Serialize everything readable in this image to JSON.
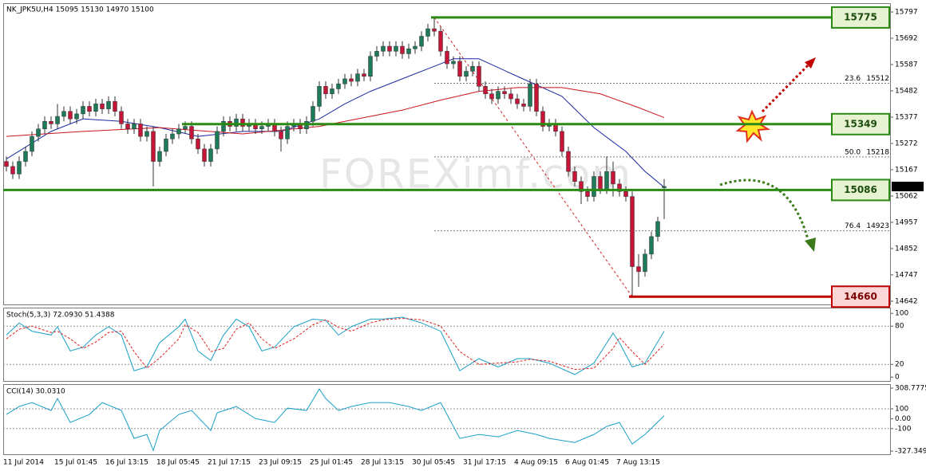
{
  "chart_data": {
    "type": "candlestick",
    "title": "NK_JPK5U,H4  15095 15130 14970 15100",
    "watermark": "FOREXimf.com",
    "categories": [
      "11 Jul 2014",
      null,
      null,
      null,
      null,
      null,
      null,
      null,
      "15 Jul 01:45",
      null,
      null,
      null,
      null,
      null,
      null,
      null,
      "16 Jul 13:15",
      null,
      null,
      null,
      null,
      null,
      null,
      null,
      "18 Jul 05:45",
      null,
      null,
      null,
      null,
      null,
      null,
      null,
      "21 Jul 17:15",
      null,
      null,
      null,
      null,
      null,
      null,
      null,
      "23 Jul 09:15",
      null,
      null,
      null,
      null,
      null,
      null,
      null,
      "25 Jul 01:45",
      null,
      null,
      null,
      null,
      null,
      null,
      null,
      "28 Jul 13:15",
      null,
      null,
      null,
      null,
      null,
      null,
      null,
      "30 Jul 05:45",
      null,
      null,
      null,
      null,
      null,
      null,
      null,
      "31 Jul 17:15",
      null,
      null,
      null,
      null,
      null,
      null,
      null,
      "4 Aug 09:15",
      null,
      null,
      null,
      null,
      null,
      null,
      null,
      "6 Aug 01:45",
      null,
      null,
      null,
      null,
      null,
      null,
      null,
      "7 Aug 13:15",
      null,
      null,
      null,
      null,
      null,
      null,
      null
    ],
    "candles": [
      [
        15200,
        15220,
        15160,
        15180
      ],
      [
        15180,
        15200,
        15130,
        15150
      ],
      [
        15150,
        15220,
        15130,
        15200
      ],
      [
        15200,
        15260,
        15180,
        15240
      ],
      [
        15240,
        15320,
        15220,
        15300
      ],
      [
        15300,
        15350,
        15280,
        15330
      ],
      [
        15330,
        15380,
        15310,
        15360
      ],
      [
        15360,
        15380,
        15330,
        15350
      ],
      [
        15350,
        15430,
        15330,
        15380
      ],
      [
        15380,
        15420,
        15360,
        15400
      ],
      [
        15400,
        15420,
        15350,
        15370
      ],
      [
        15370,
        15410,
        15350,
        15390
      ],
      [
        15390,
        15440,
        15370,
        15420
      ],
      [
        15420,
        15440,
        15380,
        15400
      ],
      [
        15400,
        15450,
        15380,
        15430
      ],
      [
        15430,
        15450,
        15390,
        15410
      ],
      [
        15410,
        15460,
        15390,
        15440
      ],
      [
        15440,
        15460,
        15380,
        15400
      ],
      [
        15400,
        15420,
        15330,
        15350
      ],
      [
        15350,
        15370,
        15310,
        15330
      ],
      [
        15330,
        15370,
        15310,
        15350
      ],
      [
        15350,
        15370,
        15280,
        15300
      ],
      [
        15300,
        15340,
        15280,
        15320
      ],
      [
        15320,
        15340,
        15100,
        15200
      ],
      [
        15200,
        15260,
        15180,
        15240
      ],
      [
        15240,
        15310,
        15220,
        15290
      ],
      [
        15290,
        15330,
        15270,
        15310
      ],
      [
        15310,
        15350,
        15290,
        15330
      ],
      [
        15330,
        15360,
        15310,
        15340
      ],
      [
        15340,
        15360,
        15270,
        15290
      ],
      [
        15290,
        15310,
        15230,
        15250
      ],
      [
        15250,
        15270,
        15180,
        15200
      ],
      [
        15200,
        15270,
        15180,
        15250
      ],
      [
        15250,
        15340,
        15230,
        15320
      ],
      [
        15320,
        15380,
        15300,
        15360
      ],
      [
        15360,
        15380,
        15320,
        15340
      ],
      [
        15340,
        15390,
        15320,
        15370
      ],
      [
        15370,
        15390,
        15320,
        15340
      ],
      [
        15340,
        15370,
        15320,
        15350
      ],
      [
        15350,
        15370,
        15310,
        15330
      ],
      [
        15330,
        15360,
        15310,
        15340
      ],
      [
        15340,
        15370,
        15320,
        15350
      ],
      [
        15350,
        15370,
        15300,
        15320
      ],
      [
        15320,
        15340,
        15240,
        15290
      ],
      [
        15290,
        15360,
        15270,
        15340
      ],
      [
        15340,
        15370,
        15320,
        15350
      ],
      [
        15350,
        15370,
        15310,
        15330
      ],
      [
        15330,
        15380,
        15310,
        15360
      ],
      [
        15360,
        15440,
        15340,
        15420
      ],
      [
        15420,
        15520,
        15400,
        15500
      ],
      [
        15500,
        15520,
        15450,
        15470
      ],
      [
        15470,
        15510,
        15450,
        15490
      ],
      [
        15490,
        15530,
        15470,
        15510
      ],
      [
        15510,
        15550,
        15490,
        15530
      ],
      [
        15530,
        15550,
        15500,
        15520
      ],
      [
        15520,
        15570,
        15500,
        15550
      ],
      [
        15550,
        15570,
        15520,
        15540
      ],
      [
        15540,
        15640,
        15520,
        15620
      ],
      [
        15620,
        15660,
        15600,
        15640
      ],
      [
        15640,
        15680,
        15620,
        15660
      ],
      [
        15660,
        15680,
        15620,
        15640
      ],
      [
        15640,
        15680,
        15620,
        15660
      ],
      [
        15660,
        15680,
        15610,
        15630
      ],
      [
        15630,
        15670,
        15610,
        15650
      ],
      [
        15650,
        15680,
        15630,
        15660
      ],
      [
        15660,
        15720,
        15640,
        15700
      ],
      [
        15700,
        15750,
        15680,
        15730
      ],
      [
        15730,
        15775,
        15700,
        15720
      ],
      [
        15720,
        15740,
        15620,
        15640
      ],
      [
        15640,
        15660,
        15570,
        15590
      ],
      [
        15590,
        15620,
        15570,
        15600
      ],
      [
        15600,
        15620,
        15520,
        15540
      ],
      [
        15540,
        15580,
        15520,
        15560
      ],
      [
        15560,
        15600,
        15540,
        15580
      ],
      [
        15580,
        15600,
        15480,
        15500
      ],
      [
        15500,
        15520,
        15450,
        15470
      ],
      [
        15470,
        15490,
        15430,
        15450
      ],
      [
        15450,
        15500,
        15430,
        15480
      ],
      [
        15480,
        15500,
        15450,
        15470
      ],
      [
        15470,
        15490,
        15430,
        15450
      ],
      [
        15450,
        15470,
        15410,
        15430
      ],
      [
        15430,
        15450,
        15400,
        15420
      ],
      [
        15420,
        15530,
        15400,
        15510
      ],
      [
        15510,
        15530,
        15380,
        15400
      ],
      [
        15400,
        15420,
        15320,
        15340
      ],
      [
        15340,
        15370,
        15320,
        15350
      ],
      [
        15350,
        15370,
        15300,
        15320
      ],
      [
        15320,
        15340,
        15220,
        15240
      ],
      [
        15240,
        15260,
        15140,
        15160
      ],
      [
        15160,
        15180,
        15100,
        15120
      ],
      [
        15120,
        15140,
        15030,
        15080
      ],
      [
        15080,
        15100,
        15040,
        15060
      ],
      [
        15060,
        15160,
        15040,
        15140
      ],
      [
        15140,
        15160,
        15070,
        15090
      ],
      [
        15090,
        15220,
        15070,
        15160
      ],
      [
        15160,
        15200,
        15060,
        15110
      ],
      [
        15110,
        15130,
        15060,
        15080
      ],
      [
        15080,
        15100,
        15040,
        15060
      ],
      [
        15060,
        15080,
        14660,
        14780
      ],
      [
        14780,
        14830,
        14700,
        14760
      ],
      [
        14760,
        14850,
        14740,
        14830
      ],
      [
        14830,
        14920,
        14810,
        14900
      ],
      [
        14900,
        14980,
        14880,
        14960
      ],
      [
        15095,
        15130,
        14970,
        15100
      ]
    ],
    "up_color": "#1f7a5a",
    "down_color": "#c4163a",
    "ylim": [
      14629,
      15832
    ],
    "yticks": [
      15797,
      15692,
      15587,
      15482,
      15377,
      15272,
      15167,
      15062,
      14957,
      14852,
      14747,
      14642
    ],
    "series": [
      {
        "color": "#1a2aa0",
        "x": [
          0,
          7,
          12,
          18,
          24,
          30,
          37,
          43,
          49,
          53,
          57,
          62,
          67,
          70,
          74,
          80,
          87,
          92,
          97,
          100,
          103
        ],
        "values": [
          15210,
          15320,
          15370,
          15360,
          15335,
          15300,
          15320,
          15320,
          15370,
          15430,
          15480,
          15530,
          15580,
          15610,
          15610,
          15540,
          15460,
          15335,
          15240,
          15160,
          15097
        ]
      },
      {
        "color": "#c8141e",
        "x": [
          0,
          12,
          24,
          37,
          49,
          55,
          62,
          68,
          74,
          80,
          87,
          93,
          99,
          103
        ],
        "values": [
          15300,
          15320,
          15335,
          15310,
          15340,
          15370,
          15405,
          15445,
          15480,
          15495,
          15495,
          15470,
          15415,
          15375
        ]
      }
    ],
    "levels": [
      {
        "value": 15775,
        "start": 67,
        "color": "#2a8a14"
      },
      {
        "value": 15349,
        "start": 28,
        "color": "#2a8a14"
      },
      {
        "value": 15086,
        "start": 0,
        "color": "#2a8a14"
      },
      {
        "value": 14660,
        "start": 98,
        "color": "#c00000"
      }
    ],
    "fib": [
      {
        "level": 23.6,
        "value": 15512
      },
      {
        "level": {
          "value": 50,
          "label": "50.0"
        },
        "value": 15218
      },
      {
        "level": 76.4,
        "value": 14923
      }
    ],
    "indicators": [
      {
        "type": "line",
        "title": "Stoch(5,3,3) 72.0930 51.4388",
        "ylim": [
          -6,
          109
        ],
        "yticks": [
          100,
          80,
          20,
          0
        ],
        "levels": [
          80,
          20
        ],
        "series": [
          {
            "color": "#1aa0c8",
            "x": [
              0,
              2,
              4,
              7,
              8,
              10,
              12,
              14,
              16,
              18,
              20,
              22,
              24,
              27,
              28,
              30,
              32,
              34,
              36,
              38,
              40,
              42,
              45,
              48,
              50,
              52,
              54,
              57,
              59,
              62,
              65,
              68,
              71,
              74,
              77,
              80,
              82,
              85,
              89,
              92,
              95,
              96,
              98,
              100,
              103
            ],
            "values": [
              66,
              85,
              72,
              66,
              79,
              41,
              47,
              66,
              79,
              66,
              10,
              16,
              54,
              79,
              91,
              41,
              26,
              66,
              91,
              79,
              41,
              47,
              79,
              91,
              89,
              66,
              79,
              91,
              91,
              94,
              85,
              72,
              10,
              29,
              16,
              29,
              29,
              22,
              4,
              22,
              69,
              54,
              16,
              22,
              72.093
            ]
          },
          {
            "color": "#e0201e",
            "dashed": true,
            "x": [
              0,
              2,
              4,
              7,
              8,
              10,
              12,
              14,
              16,
              18,
              20,
              22,
              24,
              27,
              28,
              30,
              32,
              34,
              36,
              38,
              40,
              42,
              45,
              48,
              50,
              52,
              54,
              57,
              59,
              62,
              65,
              68,
              71,
              74,
              77,
              80,
              82,
              85,
              89,
              92,
              95,
              96,
              98,
              100,
              103
            ],
            "values": [
              60,
              75,
              80,
              70,
              72,
              60,
              45,
              55,
              70,
              72,
              40,
              14,
              30,
              60,
              82,
              70,
              40,
              45,
              75,
              85,
              60,
              45,
              60,
              82,
              90,
              78,
              72,
              85,
              90,
              92,
              90,
              80,
              40,
              20,
              22,
              24,
              28,
              25,
              12,
              14,
              45,
              62,
              40,
              20,
              51.4388
            ]
          }
        ]
      },
      {
        "type": "line",
        "title": "CCI(14) 30.0310",
        "ylim": [
          -359,
          349
        ],
        "yticks": [
          308.7775,
          100,
          {
            "value": 0,
            "label": "0.00"
          },
          -100,
          -327.349
        ],
        "levels": [
          100,
          -100
        ],
        "series": [
          {
            "color": "#1aa0c8",
            "x": [
              0,
              2,
              4,
              7,
              8,
              10,
              13,
              15,
              18,
              20,
              22,
              23,
              24,
              27,
              29,
              32,
              33,
              36,
              39,
              42,
              44,
              47,
              49,
              50,
              52,
              54,
              57,
              60,
              63,
              65,
              68,
              71,
              74,
              77,
              80,
              83,
              85,
              89,
              92,
              94,
              96,
              98,
              100,
              103
            ],
            "values": [
              43,
              123,
              163,
              83,
              204,
              -38,
              43,
              163,
              83,
              -199,
              -159,
              -320,
              -119,
              43,
              83,
              -119,
              59,
              123,
              2,
              -38,
              107,
              83,
              300,
              204,
              83,
              123,
              163,
              163,
              123,
              83,
              163,
              -199,
              -159,
              -183,
              -119,
              -159,
              -199,
              -240,
              -159,
              -78,
              -38,
              -256,
              -159,
              30.031
            ]
          }
        ]
      }
    ]
  }
}
